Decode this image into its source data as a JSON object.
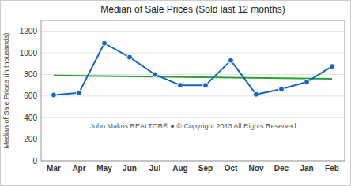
{
  "chart_data": {
    "type": "line",
    "title": "Median of Sale Prices (Sold last 12 months)",
    "ylabel": "Median of Sale Prices (in thousands)",
    "annotation": "John Makris REALTOR®  ●  © Copyright 2013 All Rights Reserved",
    "categories": [
      "Mar",
      "Apr",
      "May",
      "Jun",
      "Jul",
      "Aug",
      "Sep",
      "Oct",
      "Nov",
      "Dec",
      "Jan",
      "Feb"
    ],
    "series": [
      {
        "type": "line",
        "color": "#1565c0",
        "marker": "circle",
        "values": [
          610,
          630,
          1090,
          960,
          800,
          700,
          700,
          930,
          615,
          665,
          730,
          875
        ]
      }
    ],
    "trend_start": 790,
    "trend_end": 760,
    "ylim": [
      0,
      1300
    ],
    "yticks": [
      0,
      200,
      400,
      600,
      800,
      1000,
      1200
    ],
    "grid": true
  }
}
